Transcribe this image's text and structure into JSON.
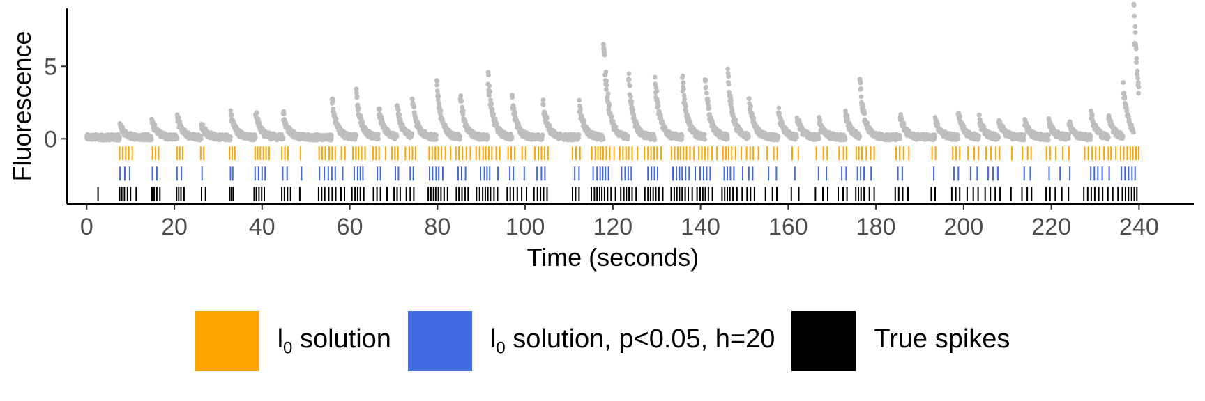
{
  "chart_data": {
    "type": "scatter",
    "xlabel": "Time (seconds)",
    "ylabel": "Fluorescence",
    "xlim": [
      -4.5,
      252.5
    ],
    "ylim": [
      -4.5,
      9
    ],
    "xticks": [
      0,
      20,
      40,
      60,
      80,
      100,
      120,
      140,
      160,
      180,
      200,
      220,
      240
    ],
    "yticks": [
      0,
      5
    ],
    "grid": false,
    "legend_position": "bottom",
    "colors": {
      "trace": "#bebebe",
      "l0": "#ffa500",
      "l0_inf": "#4169e1",
      "true": "#000000"
    },
    "trace": {
      "name": "Fluorescence",
      "baseline": 0.1,
      "noise": 0.2,
      "peaks": [
        [
          7.5,
          0.9
        ],
        [
          14.8,
          1.3
        ],
        [
          20.6,
          1.5
        ],
        [
          26.1,
          0.9
        ],
        [
          32.8,
          1.7
        ],
        [
          38.5,
          1.8
        ],
        [
          44.8,
          1.6
        ],
        [
          55.9,
          2.6
        ],
        [
          61.5,
          2.9
        ],
        [
          66.6,
          2.0
        ],
        [
          70.8,
          2.0
        ],
        [
          74.2,
          2.6
        ],
        [
          79.8,
          3.7
        ],
        [
          85.2,
          2.7
        ],
        [
          91.5,
          4.3
        ],
        [
          97.0,
          2.6
        ],
        [
          104.0,
          2.5
        ],
        [
          112.3,
          2.3
        ],
        [
          117.8,
          7.0
        ],
        [
          123.5,
          4.3
        ],
        [
          129.6,
          4.1
        ],
        [
          135.8,
          4.2
        ],
        [
          141.0,
          4.1
        ],
        [
          146.2,
          4.6
        ],
        [
          151.0,
          2.8
        ],
        [
          157.7,
          1.9
        ],
        [
          162.0,
          1.3
        ],
        [
          167.0,
          1.1
        ],
        [
          173.0,
          1.8
        ],
        [
          176.3,
          3.8
        ],
        [
          185.5,
          1.6
        ],
        [
          193.5,
          1.3
        ],
        [
          198.7,
          1.7
        ],
        [
          203.5,
          1.3
        ],
        [
          208.0,
          1.2
        ],
        [
          213.9,
          1.1
        ],
        [
          219.4,
          1.2
        ],
        [
          224.0,
          1.0
        ],
        [
          229.0,
          1.7
        ],
        [
          233.0,
          1.5
        ],
        [
          236.4,
          3.5
        ],
        [
          238.8,
          8.6
        ]
      ]
    },
    "series": [
      {
        "name": "l0 solution",
        "y": -1.0,
        "x": [
          7.5,
          8.2,
          8.9,
          9.6,
          10.4,
          15.0,
          15.7,
          16.4,
          20.6,
          21.2,
          21.9,
          26.0,
          26.7,
          32.6,
          33.2,
          33.8,
          38.4,
          39.0,
          39.6,
          40.3,
          40.9,
          41.6,
          44.5,
          45.2,
          45.9,
          48.8,
          53.0,
          53.7,
          54.4,
          55.3,
          56.0,
          56.7,
          58.1,
          58.9,
          60.7,
          61.4,
          62.0,
          62.7,
          63.5,
          65.3,
          66.0,
          66.7,
          68.2,
          69.6,
          70.3,
          71.0,
          72.7,
          73.6,
          74.3,
          75.0,
          78.1,
          78.8,
          79.5,
          80.2,
          80.9,
          81.8,
          83.0,
          84.2,
          84.9,
          85.7,
          86.6,
          87.5,
          88.8,
          89.6,
          90.4,
          91.0,
          91.7,
          92.4,
          93.4,
          94.2,
          96.1,
          96.8,
          97.6,
          99.3,
          100.1,
          102.2,
          103.0,
          103.7,
          104.4,
          105.2,
          110.8,
          111.6,
          112.5,
          115.2,
          116.0,
          116.6,
          117.2,
          117.8,
          118.5,
          119.3,
          120.3,
          121.6,
          122.3,
          123.0,
          123.6,
          124.4,
          125.6,
          127.2,
          128.0,
          128.7,
          129.4,
          130.1,
          131.0,
          133.4,
          134.1,
          134.8,
          135.4,
          136.1,
          136.8,
          137.6,
          138.5,
          139.6,
          140.3,
          141.0,
          141.7,
          142.6,
          143.7,
          145.1,
          145.8,
          146.4,
          147.1,
          148.0,
          149.3,
          150.5,
          151.3,
          152.0,
          153.2,
          155.2,
          156.7,
          157.5,
          160.9,
          162.3,
          166.4,
          168.0,
          168.9,
          171.6,
          172.6,
          173.3,
          175.5,
          176.1,
          176.8,
          177.8,
          178.8,
          179.6,
          184.6,
          185.4,
          186.3,
          187.5,
          192.8,
          193.6,
          197.5,
          198.3,
          199.1,
          201.0,
          202.4,
          203.4,
          205.1,
          206.2,
          207.3,
          208.2,
          211.0,
          213.4,
          214.6,
          215.4,
          218.9,
          219.7,
          221.0,
          222.6,
          224.0,
          227.6,
          228.4,
          229.3,
          230.1,
          231.0,
          232.0,
          233.0,
          233.6,
          234.7,
          235.8,
          236.5,
          237.3,
          238.0,
          238.6,
          239.3,
          239.9
        ]
      },
      {
        "name": "l0 solution, p<0.05, h=20",
        "y": -2.4,
        "x": [
          7.6,
          8.7,
          9.8,
          15.0,
          16.0,
          20.6,
          21.6,
          26.3,
          32.8,
          33.3,
          38.4,
          39.2,
          40.0,
          40.7,
          44.7,
          45.7,
          49.0,
          53.1,
          54.2,
          55.1,
          55.9,
          56.7,
          58.4,
          61.0,
          61.8,
          62.4,
          63.0,
          66.3,
          67.0,
          70.4,
          71.1,
          73.8,
          74.5,
          78.2,
          78.9,
          79.7,
          80.3,
          81.2,
          84.7,
          85.5,
          86.4,
          89.8,
          90.7,
          91.3,
          91.9,
          93.8,
          96.5,
          97.3,
          99.8,
          102.7,
          103.7,
          104.5,
          111.3,
          112.3,
          115.5,
          116.4,
          117.1,
          117.7,
          118.3,
          119.0,
          122.0,
          122.8,
          123.5,
          124.2,
          128.0,
          128.8,
          129.5,
          130.2,
          133.7,
          134.5,
          135.2,
          135.8,
          136.6,
          137.4,
          138.8,
          139.9,
          140.7,
          141.4,
          142.2,
          145.4,
          146.1,
          146.8,
          147.6,
          149.6,
          151.0,
          151.9,
          155.5,
          157.3,
          161.5,
          166.9,
          168.7,
          172.2,
          173.2,
          175.8,
          176.5,
          177.3,
          178.9,
          185.0,
          186.0,
          193.2,
          197.8,
          198.8,
          201.6,
          203.1,
          205.6,
          206.7,
          207.8,
          213.8,
          215.2,
          219.5,
          222.0,
          224.2,
          229.0,
          229.8,
          230.6,
          231.6,
          233.2,
          236.0,
          236.8,
          237.6,
          238.4,
          239.1
        ]
      },
      {
        "name": "True spikes",
        "y": -3.8,
        "x": [
          2.6,
          7.5,
          8.0,
          8.6,
          9.3,
          10.0,
          11.3,
          14.9,
          15.4,
          16.0,
          16.7,
          20.5,
          21.0,
          21.5,
          22.2,
          26.2,
          27.1,
          32.6,
          33.0,
          33.4,
          38.2,
          38.7,
          39.3,
          39.9,
          40.5,
          44.5,
          45.1,
          45.8,
          46.5,
          48.6,
          52.9,
          53.6,
          54.3,
          55.2,
          56.0,
          56.8,
          58.0,
          58.8,
          60.5,
          61.2,
          61.8,
          62.4,
          63.2,
          65.4,
          66.2,
          67.0,
          68.5,
          70.1,
          70.8,
          71.5,
          72.9,
          73.8,
          74.6,
          77.9,
          78.5,
          79.1,
          79.6,
          80.2,
          80.8,
          81.5,
          82.3,
          84.3,
          84.9,
          85.6,
          86.3,
          87.0,
          88.9,
          89.6,
          90.3,
          90.9,
          91.5,
          92.1,
          92.9,
          93.7,
          95.9,
          96.6,
          97.3,
          98.2,
          99.2,
          100.3,
          102.0,
          102.8,
          103.5,
          104.2,
          105.0,
          110.8,
          111.5,
          112.3,
          115.1,
          115.8,
          116.4,
          117.0,
          117.5,
          118.1,
          118.8,
          119.6,
          120.6,
          121.8,
          122.5,
          123.1,
          123.7,
          124.4,
          125.3,
          127.3,
          128.0,
          128.6,
          129.2,
          129.8,
          130.5,
          131.4,
          133.3,
          134.0,
          134.6,
          135.2,
          135.8,
          136.5,
          137.2,
          138.1,
          139.2,
          139.9,
          140.5,
          141.1,
          141.8,
          142.7,
          144.9,
          145.5,
          146.1,
          146.7,
          147.4,
          148.3,
          149.5,
          150.6,
          151.4,
          152.3,
          154.8,
          156.4,
          157.4,
          160.7,
          162.4,
          166.2,
          167.9,
          169.0,
          171.4,
          172.5,
          173.4,
          175.4,
          176.0,
          176.6,
          177.3,
          178.5,
          179.6,
          184.4,
          185.2,
          186.1,
          187.3,
          192.6,
          193.5,
          197.3,
          198.2,
          199.1,
          200.8,
          202.2,
          203.3,
          204.9,
          206.1,
          207.2,
          208.3,
          210.8,
          213.3,
          214.5,
          215.5,
          218.8,
          219.7,
          220.9,
          222.4,
          223.9,
          227.4,
          228.3,
          229.1,
          229.9,
          230.8,
          231.7,
          232.9,
          234.0,
          235.2,
          236.2,
          236.9,
          237.6,
          238.3,
          238.9,
          239.5
        ]
      }
    ]
  },
  "legend": {
    "items": [
      {
        "main": "l",
        "sub": "0",
        "rest": " solution",
        "color": "#ffa500"
      },
      {
        "main": "l",
        "sub": "0",
        "rest": " solution, p<0.05, h=20",
        "color": "#4169e1"
      },
      {
        "main": "True spikes",
        "sub": "",
        "rest": "",
        "color": "#000000"
      }
    ]
  }
}
